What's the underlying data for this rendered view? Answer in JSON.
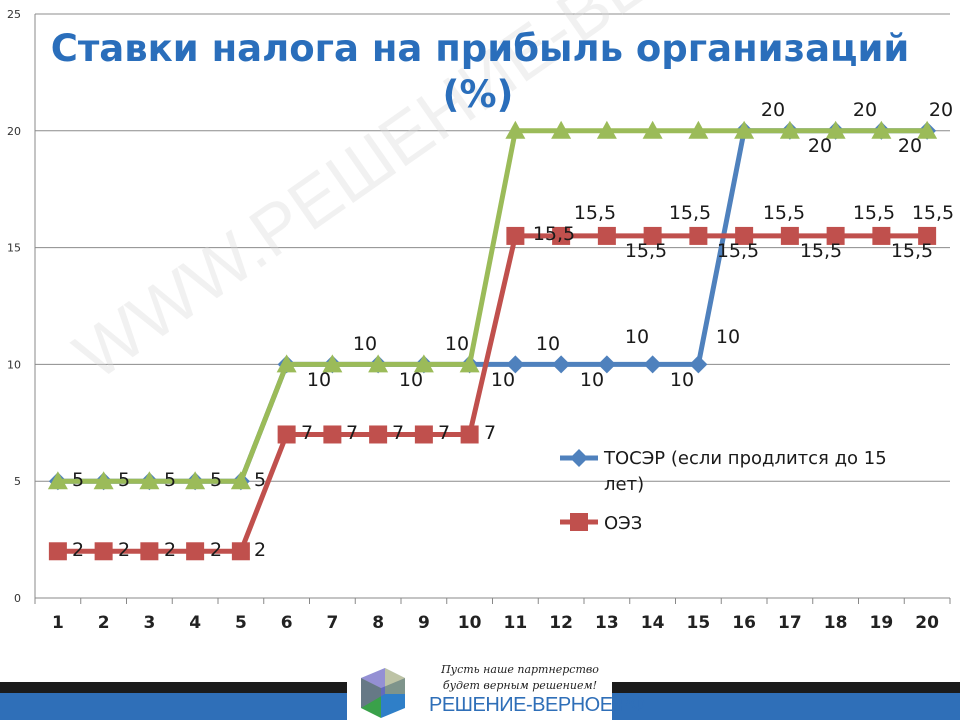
{
  "title": {
    "line1": "Ставки налога на прибыль организаций",
    "line2": "(%)"
  },
  "watermark": "WWW.РЕШЕНИЕ-ВЕРНОЕ.РФ",
  "footer": {
    "slogan_line1": "Пусть наше партнерство",
    "slogan_line2": "будет верным решением!",
    "site": "РЕШЕНИЕ-ВЕРНОЕ.РФ"
  },
  "chart_data": {
    "type": "line",
    "title": "Ставки налога на прибыль организаций (%)",
    "xlabel": "",
    "ylabel": "",
    "categories": [
      "1",
      "2",
      "3",
      "4",
      "5",
      "6",
      "7",
      "8",
      "9",
      "10",
      "11",
      "12",
      "13",
      "14",
      "15",
      "16",
      "17",
      "18",
      "19",
      "20"
    ],
    "ylim": [
      0,
      25
    ],
    "yticks": [
      0,
      5,
      10,
      15,
      20,
      25
    ],
    "grid": true,
    "legend_position": "right",
    "series": [
      {
        "name": "ТОСЭР (если продлится до 15 лет)",
        "color": "#4f81bd",
        "marker": "diamond",
        "values": [
          5,
          5,
          5,
          5,
          5,
          10,
          10,
          10,
          10,
          10,
          10,
          10,
          10,
          10,
          10,
          20,
          20,
          20,
          20,
          20
        ]
      },
      {
        "name": "ОЭЗ",
        "color": "#c0504d",
        "marker": "square",
        "values": [
          2,
          2,
          2,
          2,
          2,
          7,
          7,
          7,
          7,
          7,
          15.5,
          15.5,
          15.5,
          15.5,
          15.5,
          15.5,
          15.5,
          15.5,
          15.5,
          15.5
        ]
      },
      {
        "name": "",
        "color": "#9bbb59",
        "marker": "triangle",
        "values": [
          5,
          5,
          5,
          5,
          5,
          10,
          10,
          10,
          10,
          10,
          20,
          20,
          20,
          20,
          20,
          20,
          20,
          20,
          20,
          20
        ]
      }
    ],
    "data_labels": [
      "5",
      "5",
      "5",
      "5",
      "5",
      "10",
      "10",
      "10",
      "10",
      "10",
      "10",
      "10",
      "10",
      "10",
      "10",
      "20",
      "20",
      "20",
      "20",
      "20",
      "2",
      "2",
      "2",
      "2",
      "2",
      "7",
      "7",
      "7",
      "7",
      "7",
      "15,5",
      "15,5",
      "15,5",
      "15,5",
      "15,5",
      "15,5",
      "15,5",
      "15,5",
      "15,5",
      "15,5"
    ],
    "legend": [
      "ТОСЭР (если продлится до 15",
      "лет)",
      "ОЭЗ"
    ]
  }
}
